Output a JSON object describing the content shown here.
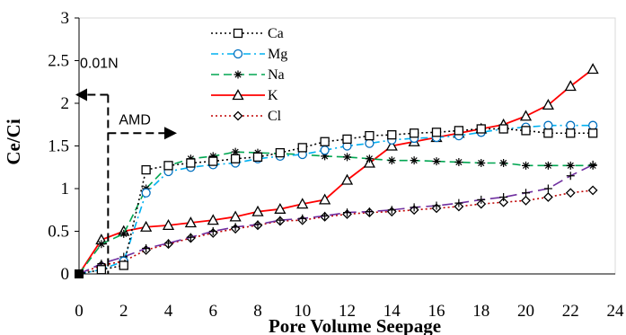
{
  "chart_data": {
    "type": "line",
    "xlabel": "Pore Volume Seepage",
    "ylabel": "Ce/Ci",
    "xlim": [
      0,
      24
    ],
    "ylim": [
      0,
      3
    ],
    "xticks": [
      "0",
      "2",
      "4",
      "6",
      "8",
      "10",
      "12",
      "14",
      "16",
      "18",
      "20",
      "22",
      "24"
    ],
    "yticks": [
      "0",
      "0.5",
      "1",
      "1.5",
      "2",
      "2.5",
      "3"
    ],
    "grid": false,
    "legend_position": "top-center",
    "annotations": [
      {
        "text": "0.01N",
        "arrow": "left",
        "at_x": 1.3,
        "at_y": 2.1
      },
      {
        "text": "AMD",
        "arrow": "right",
        "at_x": 1.3,
        "at_y": 1.65
      }
    ],
    "series": [
      {
        "name": "Ca",
        "color": "#000000",
        "dash": "dotted",
        "marker": "square",
        "x": [
          0,
          1,
          2,
          3,
          4,
          5,
          6,
          7,
          8,
          9,
          10,
          11,
          12,
          13,
          14,
          15,
          16,
          17,
          18,
          19,
          20,
          21,
          22,
          23
        ],
        "y": [
          0,
          0.05,
          0.1,
          1.22,
          1.27,
          1.3,
          1.32,
          1.35,
          1.37,
          1.42,
          1.48,
          1.55,
          1.58,
          1.62,
          1.63,
          1.65,
          1.66,
          1.68,
          1.7,
          1.7,
          1.68,
          1.65,
          1.65,
          1.65
        ]
      },
      {
        "name": "Mg",
        "color": "#00b0f0",
        "dash": "dashdot",
        "marker": "circle",
        "x": [
          0,
          1,
          2,
          3,
          4,
          5,
          6,
          7,
          8,
          9,
          10,
          11,
          12,
          13,
          14,
          15,
          16,
          17,
          18,
          19,
          20,
          21,
          22,
          23
        ],
        "y": [
          0,
          0.05,
          0.15,
          0.95,
          1.2,
          1.25,
          1.28,
          1.3,
          1.35,
          1.38,
          1.4,
          1.45,
          1.5,
          1.53,
          1.57,
          1.59,
          1.6,
          1.62,
          1.66,
          1.7,
          1.72,
          1.74,
          1.74,
          1.74
        ]
      },
      {
        "name": "Na",
        "color": "#00a651",
        "dash": "dashed",
        "marker": "star",
        "x": [
          0,
          1,
          2,
          3,
          4,
          5,
          6,
          7,
          8,
          9,
          10,
          11,
          12,
          13,
          14,
          15,
          16,
          17,
          18,
          19,
          20,
          21,
          22,
          23
        ],
        "y": [
          0,
          0.35,
          0.47,
          1.0,
          1.27,
          1.35,
          1.38,
          1.43,
          1.42,
          1.41,
          1.4,
          1.38,
          1.37,
          1.35,
          1.33,
          1.33,
          1.32,
          1.31,
          1.3,
          1.3,
          1.27,
          1.27,
          1.27,
          1.27
        ]
      },
      {
        "name": "K",
        "color": "#ff0000",
        "dash": "solid",
        "marker": "triangle",
        "x": [
          0,
          1,
          2,
          3,
          4,
          5,
          6,
          7,
          8,
          9,
          10,
          11,
          12,
          13,
          14,
          15,
          16,
          17,
          18,
          19,
          20,
          21,
          22,
          23
        ],
        "y": [
          0,
          0.4,
          0.5,
          0.55,
          0.57,
          0.6,
          0.63,
          0.67,
          0.73,
          0.76,
          0.82,
          0.87,
          1.1,
          1.3,
          1.5,
          1.55,
          1.6,
          1.65,
          1.7,
          1.75,
          1.85,
          1.98,
          2.2,
          2.4
        ]
      },
      {
        "name": "Cl",
        "color": "#c00000",
        "dash": "dotted",
        "marker": "diamond",
        "x": [
          0,
          1,
          2,
          3,
          4,
          5,
          6,
          7,
          8,
          9,
          10,
          11,
          12,
          13,
          14,
          15,
          16,
          17,
          18,
          19,
          20,
          21,
          22,
          23
        ],
        "y": [
          0,
          0.1,
          0.15,
          0.28,
          0.35,
          0.42,
          0.48,
          0.53,
          0.57,
          0.62,
          0.63,
          0.67,
          0.7,
          0.72,
          0.73,
          0.75,
          0.77,
          0.79,
          0.82,
          0.84,
          0.86,
          0.9,
          0.95,
          0.98
        ]
      },
      {
        "name": "",
        "color": "#7030a0",
        "dash": "longdash",
        "marker": "plus",
        "x": [
          0,
          1,
          2,
          3,
          4,
          5,
          6,
          7,
          8,
          9,
          10,
          11,
          12,
          13,
          14,
          15,
          16,
          17,
          18,
          19,
          20,
          21,
          22,
          23
        ],
        "y": [
          0,
          0.12,
          0.2,
          0.3,
          0.36,
          0.43,
          0.5,
          0.55,
          0.58,
          0.63,
          0.65,
          0.68,
          0.72,
          0.73,
          0.75,
          0.78,
          0.8,
          0.83,
          0.87,
          0.9,
          0.95,
          1.0,
          1.15,
          1.28
        ]
      }
    ]
  }
}
